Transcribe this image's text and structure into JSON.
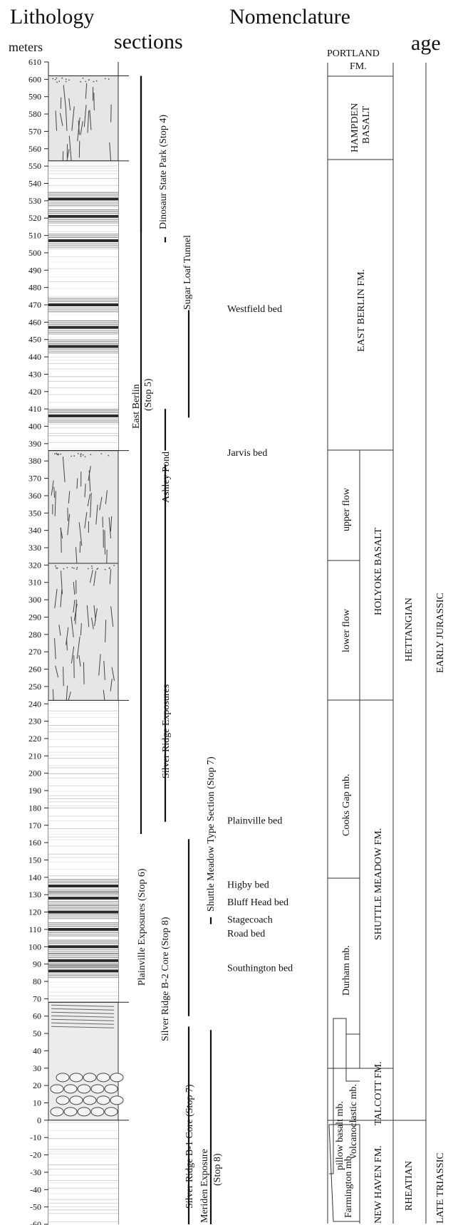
{
  "headers": {
    "lithology": "Lithology",
    "sections": "sections",
    "nomenclature": "Nomenclature",
    "age": "age",
    "meters": "meters"
  },
  "axis": {
    "min": -60,
    "max": 610,
    "step": 10,
    "unit": "meters"
  },
  "lithology_units": [
    {
      "name": "hampden-basalt-column",
      "type": "basalt",
      "from": 553,
      "to": 602
    },
    {
      "name": "east-berlin-sediments",
      "type": "layered",
      "from": 386,
      "to": 553
    },
    {
      "name": "holyoke-upper-flow-column",
      "type": "basalt",
      "from": 321,
      "to": 386
    },
    {
      "name": "holyoke-lower-flow-column",
      "type": "basalt",
      "from": 242,
      "to": 321
    },
    {
      "name": "shuttle-meadow-sediments",
      "type": "layered",
      "from": 68,
      "to": 242
    },
    {
      "name": "talcott-volcanics",
      "type": "pillow",
      "from": 0,
      "to": 68
    },
    {
      "name": "new-haven-sediments",
      "type": "layered",
      "from": -60,
      "to": 0
    }
  ],
  "sections": [
    {
      "label": "Dinosaur State Park (Stop 4)",
      "from": 512,
      "to": 602,
      "col": 0,
      "label_col": 1
    },
    {
      "label": "Sugar Loaf Tunnel",
      "from": 506,
      "to": 509,
      "col": 1,
      "label_col": 2
    },
    {
      "label": "Sugar Loaf Tunnel",
      "from": 405,
      "to": 467,
      "col": 2,
      "label_col": 2,
      "hide_label": true
    },
    {
      "label": "East Berlin (Stop 5)",
      "from": 386,
      "to": 410,
      "col": 1,
      "label_col": 0.4
    },
    {
      "label": "Ashley Pond",
      "from": 385,
      "to": 378,
      "col": 1,
      "label_col": 1,
      "label_only": true
    },
    {
      "label": "Plainville Exposures (Stop 6)",
      "from": 165,
      "to": 602,
      "col": 0,
      "label_col": 0,
      "hide_label": true
    },
    {
      "label": "Silver Ridge Exposures",
      "from": 172,
      "to": 378,
      "col": 1,
      "label_col": 1
    },
    {
      "label": "Shuttle Meadow Type Section (Stop 7)",
      "from": 113,
      "to": 117,
      "col": 3,
      "label_col": 3
    },
    {
      "label": "Silver Ridge B-2 Core (Stop 8)",
      "from": 60,
      "to": 162,
      "col": 2,
      "label_col": 2
    },
    {
      "label": "Silver Ridge B-1 Core (Stop 7)",
      "from": -60,
      "to": 54,
      "col": 2,
      "label_col": 2
    },
    {
      "label": "Meriden Exposure (Stop 8)",
      "from": -60,
      "to": 52,
      "col": 3,
      "label_col": 3
    }
  ],
  "section_labels": {
    "dinosaur": "Dinosaur State Park (Stop 4)",
    "sugarloaf": "Sugar Loaf Tunnel",
    "eastberlin1": "East Berlin",
    "eastberlin2": "(Stop 5)",
    "ashley": "Ashley Pond",
    "silverridge": "Silver Ridge Exposures",
    "plainville": "Plainville Exposures (Stop 6)",
    "shuttle": "Shuttle Meadow Type Section (Stop 7)",
    "b2": "Silver Ridge B-2 Core (Stop 8)",
    "b1": "Silver Ridge B-1 Core (Stop 7)",
    "meriden1": "Meriden Exposure",
    "meriden2": "(Stop 8)"
  },
  "beds": [
    {
      "label": "Westfield bed",
      "at": 468
    },
    {
      "label": "Jarvis bed",
      "at": 385
    },
    {
      "label": "Plainville bed",
      "at": 173
    },
    {
      "label": "Higby bed",
      "at": 136
    },
    {
      "label": "Bluff Head bed",
      "at": 126
    },
    {
      "label": "Stagecoach",
      "at": 116
    },
    {
      "label": "Road bed",
      "at": 108
    },
    {
      "label": "Southington bed",
      "at": 88
    }
  ],
  "nomenclature": {
    "portland_1": "PORTLAND",
    "portland_2": "FM.",
    "hampden_1": "HAMPDEN",
    "hampden_2": "BASALT",
    "east_berlin": "EAST BERLIN FM.",
    "upper_flow": "upper flow",
    "lower_flow": "lower flow",
    "holyoke": "HOLYOKE BASALT",
    "cooks_gap": "Cooks Gap mb.",
    "durham": "Durham mb.",
    "shuttle_meadow": "SHUTTLE MEADOW  FM.",
    "pillow": "pillow basalt mb.",
    "volcanoclastic": "volcanoclastic mb.",
    "talcott": "TALCOTT  FM.",
    "farmington": "Farmington mb.",
    "new_haven": "NEW HAVEN FM.",
    "hettangian": "HETTANGIAN",
    "rheatian": "RHEATIAN",
    "early_jurassic": "EARLY JURASSIC",
    "late_triassic": "LATE TRIASSIC"
  },
  "dark_bands": [
    531,
    521,
    507,
    470,
    457,
    446,
    406,
    135,
    128,
    120,
    110,
    100,
    92,
    86
  ]
}
